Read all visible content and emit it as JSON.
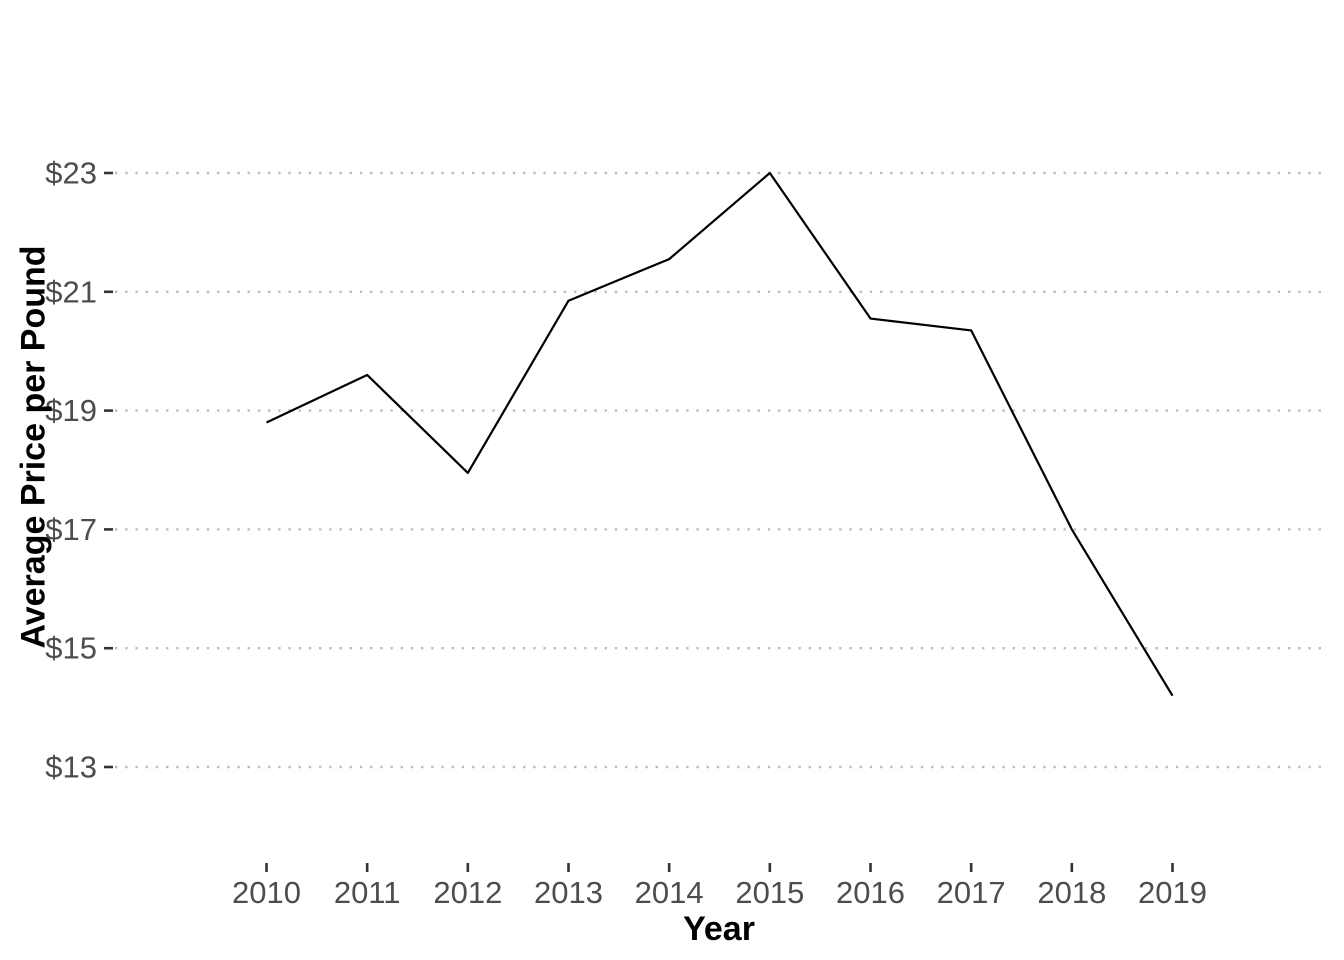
{
  "page": {
    "background": "#FFFFFF"
  },
  "chart_data": {
    "type": "line",
    "title": "",
    "xlabel": "Year",
    "ylabel": "Average Price per Pound",
    "x": [
      2010,
      2011,
      2012,
      2013,
      2014,
      2015,
      2016,
      2017,
      2018,
      2019
    ],
    "x_tick_labels": [
      "2010",
      "2011",
      "2012",
      "2013",
      "2014",
      "2015",
      "2016",
      "2017",
      "2018",
      "2019"
    ],
    "series": [
      {
        "name": "average-price-per-pound",
        "values": [
          18.8,
          19.6,
          17.95,
          20.85,
          21.55,
          23.0,
          20.55,
          20.35,
          17.0,
          14.2
        ]
      }
    ],
    "y_ticks": [
      13,
      15,
      17,
      19,
      21,
      23
    ],
    "y_tick_labels": [
      "$13",
      "$15",
      "$17",
      "$19",
      "$21",
      "$23"
    ],
    "ylim": [
      13,
      23
    ],
    "xlim": [
      2010,
      2019
    ],
    "grid": {
      "horizontal": "dotted",
      "vertical": "none"
    },
    "legend": "none",
    "colors": {
      "line": "#000000",
      "grid": "#BDBDBD",
      "tick_mark": "#333333",
      "axis_text": "#4D4D4D",
      "axis_title": "#000000",
      "background": "#FFFFFF"
    }
  }
}
